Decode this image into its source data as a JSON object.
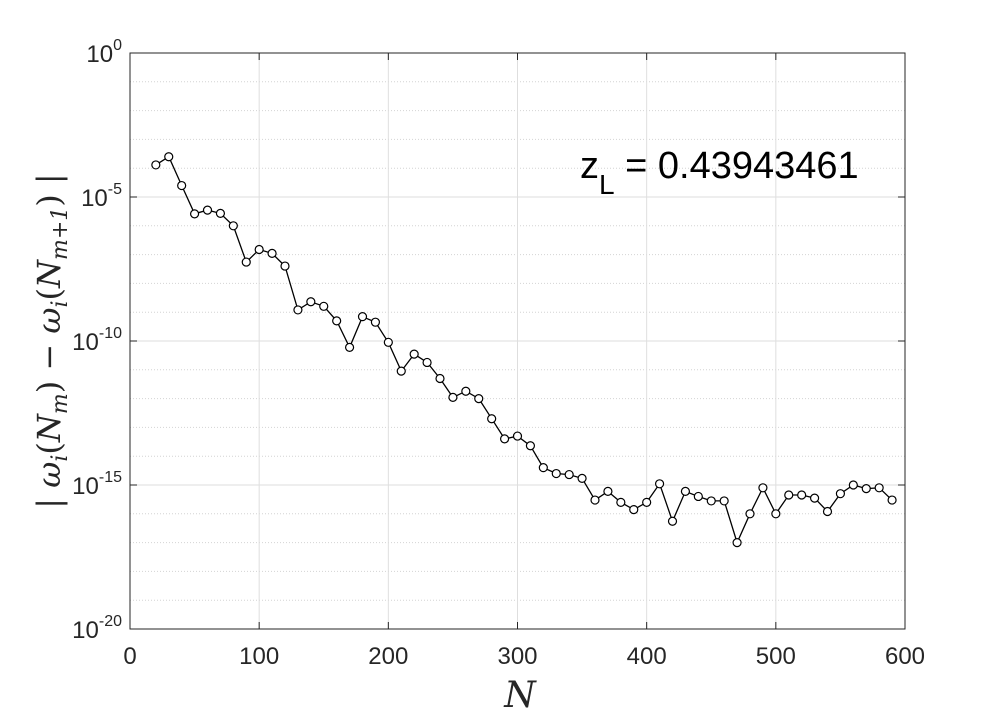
{
  "chart_data": {
    "type": "line",
    "title": "",
    "xlabel": "N",
    "ylabel": "| ω_i(N_m) − ω_i(N_{m+1}) |",
    "ylabel_parts": {
      "bar_left": "|",
      "omega1": "ω",
      "i1": "i",
      "paren_open1": "(",
      "N1": "N",
      "m1": "m",
      "paren_close1": ")",
      "minus": " − ",
      "omega2": "ω",
      "i2": "i",
      "paren_open2": "(",
      "N2": "N",
      "mp1": "m+1",
      "paren_close2": ")",
      "bar_right": "|"
    },
    "xlim": [
      0,
      600
    ],
    "ylim": [
      1e-20,
      1
    ],
    "yscale": "log",
    "grid": true,
    "minor_grid": true,
    "x_ticks": [
      {
        "value": 0,
        "label": "0"
      },
      {
        "value": 100,
        "label": "100"
      },
      {
        "value": 200,
        "label": "200"
      },
      {
        "value": 300,
        "label": "300"
      },
      {
        "value": 400,
        "label": "400"
      },
      {
        "value": 500,
        "label": "500"
      },
      {
        "value": 600,
        "label": "600"
      }
    ],
    "y_ticks": [
      {
        "value": 1,
        "base": "10",
        "exp": "0"
      },
      {
        "value": 1e-05,
        "base": "10",
        "exp": "-5"
      },
      {
        "value": 1e-10,
        "base": "10",
        "exp": "-10"
      },
      {
        "value": 1e-15,
        "base": "10",
        "exp": "-15"
      },
      {
        "value": 1e-20,
        "base": "10",
        "exp": "-20"
      }
    ],
    "annotation": {
      "main": "z",
      "sub": "L",
      "rest": " = 0.43943461"
    },
    "series": [
      {
        "marker": "circle",
        "color": "#000000",
        "x": [
          20,
          30,
          40,
          50,
          60,
          70,
          80,
          90,
          100,
          110,
          120,
          130,
          140,
          150,
          160,
          170,
          180,
          190,
          200,
          210,
          220,
          230,
          240,
          250,
          260,
          270,
          280,
          290,
          300,
          310,
          320,
          330,
          340,
          350,
          360,
          370,
          380,
          390,
          400,
          410,
          420,
          430,
          440,
          450,
          460,
          470,
          480,
          490,
          500,
          510,
          520,
          530,
          540,
          550,
          560,
          570,
          580,
          590
        ],
        "y": [
          0.00013,
          0.00025,
          2.5e-05,
          2.6e-06,
          3.5e-06,
          2.7e-06,
          1e-06,
          5.5e-08,
          1.5e-07,
          1.1e-07,
          4e-08,
          1.2e-09,
          2.3e-09,
          1.6e-09,
          5e-10,
          6e-11,
          7e-10,
          4.5e-10,
          9e-11,
          9e-12,
          3.5e-11,
          1.8e-11,
          5e-12,
          1.1e-12,
          1.8e-12,
          1e-12,
          2e-13,
          4e-14,
          5e-14,
          2.3e-14,
          4e-15,
          2.5e-15,
          2.3e-15,
          1.7e-15,
          3e-16,
          6e-16,
          2.5e-16,
          1.4e-16,
          2.5e-16,
          1.1e-15,
          5.5e-17,
          6e-16,
          4e-16,
          2.8e-16,
          2.8e-16,
          1e-17,
          1e-16,
          8e-16,
          1e-16,
          4.5e-16,
          4.5e-16,
          3.5e-16,
          1.2e-16,
          5e-16,
          1e-15,
          7.5e-16,
          8e-16,
          3e-16
        ]
      }
    ]
  }
}
